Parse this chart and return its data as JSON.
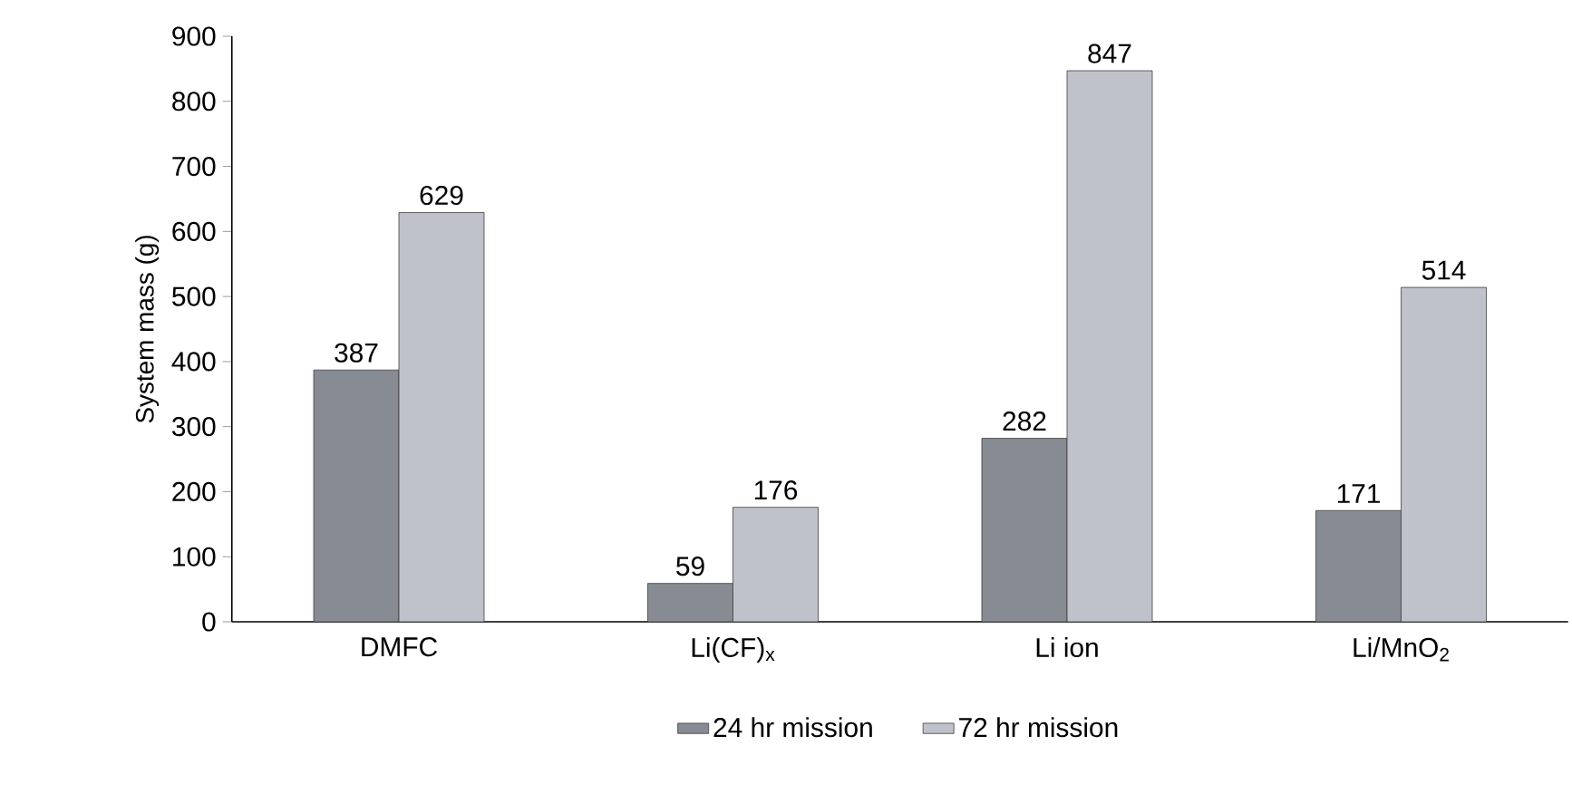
{
  "chart_data": {
    "type": "bar",
    "ylabel": "System mass (g)",
    "categories": [
      "DMFC",
      "Li(CF)$_{x}$",
      "Li ion",
      "Li/MnO$_{2}$"
    ],
    "series": [
      {
        "name": "24 hr mission",
        "color": "#878b93",
        "values": [
          387,
          59,
          282,
          171
        ]
      },
      {
        "name": "72 hr mission",
        "color": "#c0c2cb",
        "values": [
          629,
          176,
          847,
          514
        ]
      }
    ],
    "ylim": [
      0,
      900
    ],
    "yticks": [
      0,
      100,
      200,
      300,
      400,
      500,
      600,
      700,
      800,
      900
    ],
    "data_labels": true,
    "grid": false,
    "legend": "bottom"
  }
}
